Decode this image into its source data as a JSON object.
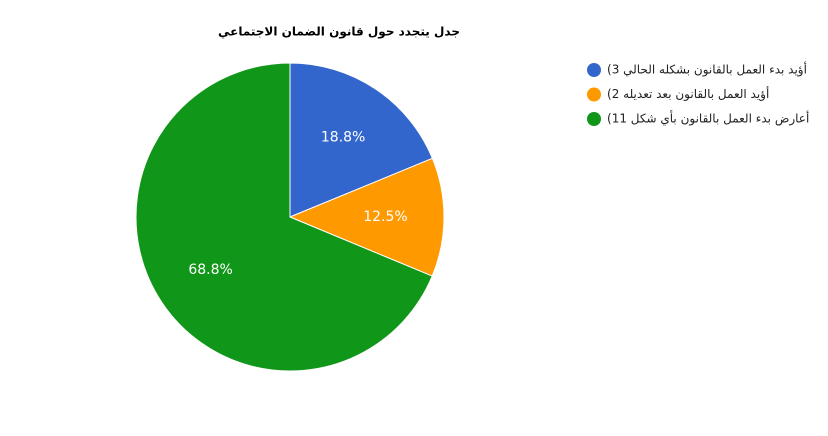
{
  "chart_data": {
    "type": "pie",
    "title": "جدل يتجدد حول قانون الضمان الاجتماعي",
    "series": [
      {
        "name": "(أؤيد بدء العمل بالقانون بشكله الحالي 3",
        "color": "#3366cc"
      },
      {
        "name": "(أؤيد العمل بالقانون بعد تعديله 2",
        "color": "#ff9900"
      },
      {
        "name": "(أعارض بدء العمل بالقانون بأي شكل 11",
        "color": "#109618"
      }
    ],
    "values": [
      18.8,
      12.5,
      68.8
    ],
    "value_labels": [
      "18.8%",
      "12.5%",
      "68.8%"
    ]
  }
}
